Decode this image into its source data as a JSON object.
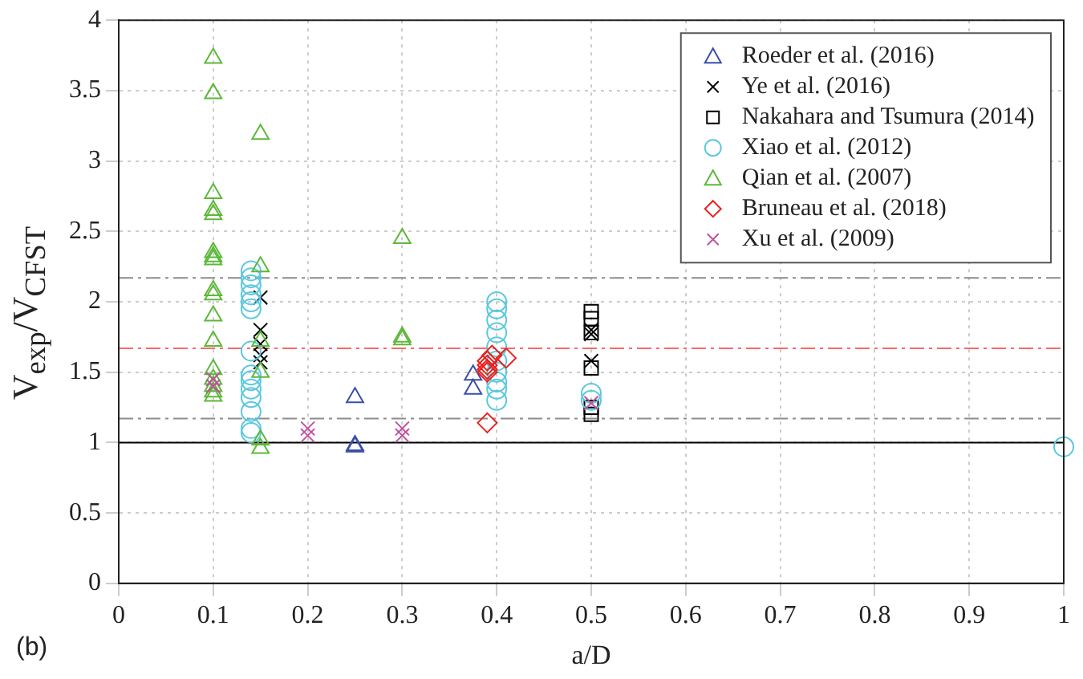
{
  "chart_data": {
    "type": "scatter",
    "xlabel": "a/D",
    "ylabel": "V$_{exp}$/V$_{CFST}$",
    "xlim": [
      0,
      1
    ],
    "ylim": [
      0,
      4
    ],
    "xticks": [
      0,
      0.1,
      0.2,
      0.3,
      0.4,
      0.5,
      0.6,
      0.7,
      0.8,
      0.9,
      1
    ],
    "yticks": [
      0,
      0.5,
      1,
      1.5,
      2,
      2.5,
      3,
      3.5,
      4
    ],
    "grid": true,
    "legend": "top right",
    "annotations": [
      "(b)"
    ],
    "ref_lines": [
      {
        "axis": "y",
        "value": 1,
        "color": "#000000",
        "line_style": "solid"
      },
      {
        "axis": "y",
        "value": 1.17,
        "color": "#8c8c8c",
        "line_style": "dashed"
      },
      {
        "axis": "y",
        "value": 1.67,
        "color": "#ff6666",
        "line_style": "dashed"
      },
      {
        "axis": "y",
        "value": 2.17,
        "color": "#8c8c8c",
        "line_style": "dashed"
      }
    ],
    "series": [
      {
        "name": "Roeder et al. (2016)",
        "color": "#3a4fa8",
        "marker": "triangle",
        "x": [
          0.25,
          0.25,
          0.25,
          0.375,
          0.375
        ],
        "values": [
          1.32,
          0.98,
          0.97,
          1.48,
          1.38
        ]
      },
      {
        "name": "Ye et al. (2016)",
        "color": "#000000",
        "marker": "cross",
        "x": [
          0.15,
          0.15,
          0.15,
          0.15,
          0.15,
          0.5,
          0.5,
          0.5
        ],
        "values": [
          2.03,
          1.8,
          1.7,
          1.62,
          1.57,
          1.8,
          1.77,
          1.58
        ]
      },
      {
        "name": "Nakahara and Tsumura (2014)",
        "color": "#000000",
        "marker": "square",
        "x": [
          0.5,
          0.5,
          0.5,
          0.5,
          0.5,
          0.5
        ],
        "values": [
          1.93,
          1.88,
          1.78,
          1.53,
          1.25,
          1.2
        ]
      },
      {
        "name": "Xiao et al. (2012)",
        "color": "#5bc8e0",
        "marker": "circle",
        "x": [
          0.14,
          0.14,
          0.14,
          0.14,
          0.14,
          0.14,
          0.14,
          0.14,
          0.14,
          0.14,
          0.14,
          0.14,
          0.14,
          0.14,
          0.4,
          0.4,
          0.4,
          0.4,
          0.4,
          0.4,
          0.4,
          0.4,
          0.4,
          0.4,
          0.5,
          0.5,
          1
        ],
        "values": [
          2.22,
          2.17,
          2.12,
          2.05,
          2,
          1.95,
          1.65,
          1.48,
          1.44,
          1.38,
          1.32,
          1.22,
          1.1,
          1.07,
          2,
          1.95,
          1.87,
          1.78,
          1.68,
          1.58,
          1.5,
          1.43,
          1.38,
          1.3,
          1.35,
          1.3,
          0.97
        ]
      },
      {
        "name": "Qian et al. (2007)",
        "color": "#5db83a",
        "marker": "triangle",
        "x": [
          0.1,
          0.1,
          0.1,
          0.1,
          0.1,
          0.1,
          0.1,
          0.1,
          0.1,
          0.1,
          0.1,
          0.1,
          0.1,
          0.1,
          0.1,
          0.1,
          0.1,
          0.15,
          0.15,
          0.15,
          0.15,
          0.15,
          0.15,
          0.3,
          0.3,
          0.3
        ],
        "values": [
          3.73,
          3.48,
          2.77,
          2.65,
          2.62,
          2.35,
          2.32,
          2.3,
          2.08,
          2.05,
          1.9,
          1.72,
          1.52,
          1.45,
          1.4,
          1.36,
          1.33,
          3.19,
          2.25,
          1.72,
          1.5,
          1.02,
          0.96,
          2.45,
          1.75,
          1.73
        ]
      },
      {
        "name": "Bruneau et al. (2018)",
        "color": "#e8201e",
        "marker": "diamond",
        "x": [
          0.39,
          0.39,
          0.39,
          0.39,
          0.395,
          0.41,
          0.39
        ],
        "values": [
          1.58,
          1.55,
          1.52,
          1.5,
          1.62,
          1.6,
          1.14
        ]
      },
      {
        "name": "Xu et al. (2009)",
        "color": "#c0509f",
        "marker": "cross",
        "x": [
          0.1,
          0.1,
          0.2,
          0.2,
          0.3,
          0.3,
          0.5
        ],
        "values": [
          1.45,
          1.4,
          1.1,
          1.05,
          1.1,
          1.05,
          1.28
        ]
      }
    ]
  }
}
